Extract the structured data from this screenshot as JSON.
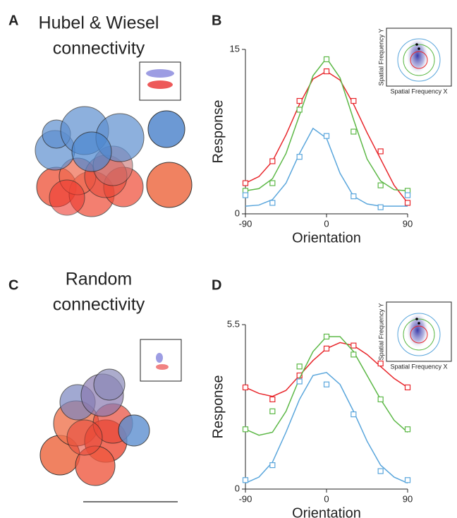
{
  "panels": [
    {
      "letter": "A",
      "title": [
        "Hubel & Wiesel",
        "connectivity"
      ]
    },
    {
      "letter": "B"
    },
    {
      "letter": "C",
      "title": [
        "Random",
        "connectivity"
      ]
    },
    {
      "letter": "D"
    }
  ],
  "chart_data": [
    {
      "type": "line",
      "xlabel": "Orientation",
      "ylabel": "Response",
      "x": [
        -90,
        -60,
        -30,
        0,
        30,
        60,
        90
      ],
      "fit_x": [
        -90,
        -75,
        -60,
        -45,
        -30,
        -15,
        0,
        15,
        30,
        45,
        60,
        75,
        90
      ],
      "xlim": [
        -90,
        90
      ],
      "xticks": [
        -90,
        0,
        90
      ],
      "ylim": [
        0,
        15
      ],
      "yticks": [
        0,
        15
      ],
      "inset_xlabel": "Spatial Frequency X",
      "inset_ylabel": "Spatial Frequency Y",
      "series": [
        {
          "color": "#e8262b",
          "values": [
            2.8,
            4.8,
            10.3,
            13.0,
            10.3,
            5.7,
            1.0
          ],
          "fit_values": [
            2.8,
            3.4,
            4.8,
            7.2,
            10.0,
            12.3,
            13.0,
            12.2,
            10.0,
            7.4,
            5.0,
            2.6,
            1.0
          ]
        },
        {
          "color": "#5cb846",
          "values": [
            2.1,
            2.8,
            9.5,
            14.1,
            7.5,
            2.6,
            2.1
          ],
          "fit_values": [
            2.1,
            2.3,
            3.2,
            5.5,
            9.0,
            12.6,
            14.2,
            12.4,
            8.6,
            5.0,
            3.0,
            2.2,
            2.1
          ]
        },
        {
          "color": "#5aa6dc",
          "values": [
            1.7,
            1.0,
            5.2,
            7.1,
            1.6,
            0.6,
            1.7
          ],
          "fit_values": [
            0.7,
            0.8,
            1.3,
            2.8,
            5.5,
            7.8,
            6.9,
            3.7,
            1.6,
            0.9,
            0.7,
            0.7,
            0.7
          ]
        }
      ]
    },
    {
      "type": "line",
      "xlabel": "Orientation",
      "ylabel": "Response",
      "x": [
        -90,
        -60,
        -30,
        0,
        30,
        60,
        90
      ],
      "fit_x": [
        -90,
        -75,
        -60,
        -45,
        -30,
        -15,
        0,
        15,
        30,
        45,
        60,
        75,
        90
      ],
      "xlim": [
        -90,
        90
      ],
      "xticks": [
        -90,
        0,
        90
      ],
      "ylim": [
        0,
        5.5
      ],
      "yticks": [
        0,
        5.5
      ],
      "inset_xlabel": "Spatial Frequency X",
      "inset_ylabel": "Spatial Frequency Y",
      "series": [
        {
          "color": "#e8262b",
          "values": [
            3.4,
            3.0,
            3.8,
            4.7,
            4.8,
            4.2,
            3.4
          ],
          "fit_values": [
            3.4,
            3.2,
            3.1,
            3.3,
            3.8,
            4.3,
            4.7,
            4.9,
            4.8,
            4.5,
            4.1,
            3.7,
            3.4
          ]
        },
        {
          "color": "#5cb846",
          "values": [
            2.0,
            2.6,
            4.1,
            5.1,
            4.5,
            3.0,
            2.0
          ],
          "fit_values": [
            2.0,
            1.8,
            1.9,
            2.6,
            3.7,
            4.6,
            5.1,
            5.1,
            4.6,
            3.8,
            3.0,
            2.3,
            1.9
          ]
        },
        {
          "color": "#5aa6dc",
          "values": [
            0.3,
            0.8,
            3.6,
            3.5,
            2.5,
            0.6,
            0.3
          ],
          "fit_values": [
            0.2,
            0.4,
            0.9,
            1.9,
            3.0,
            3.8,
            3.9,
            3.5,
            2.6,
            1.6,
            0.8,
            0.4,
            0.2
          ]
        }
      ]
    }
  ]
}
